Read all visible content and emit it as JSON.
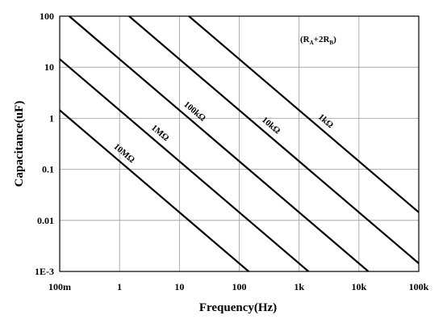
{
  "chart_data": {
    "type": "line",
    "title": "",
    "xlabel": "Frequency(Hz)",
    "ylabel": "Capacitance(uF)",
    "x_scale": "log",
    "y_scale": "log",
    "xlim": [
      0.1,
      100000
    ],
    "ylim": [
      0.001,
      100
    ],
    "x_ticks": [
      0.1,
      1,
      10,
      100,
      1000,
      10000,
      100000
    ],
    "x_tick_labels": [
      "100m",
      "1",
      "10",
      "100",
      "1k",
      "10k",
      "100k"
    ],
    "y_ticks": [
      0.001,
      0.01,
      0.1,
      1,
      10,
      100
    ],
    "y_tick_labels": [
      "1E-3",
      "0.01",
      "0.1",
      "1",
      "10",
      "100"
    ],
    "grid": true,
    "annotation": {
      "parts": [
        {
          "text": "(R",
          "sub": false
        },
        {
          "text": "A",
          "sub": true
        },
        {
          "text": "+2R",
          "sub": false
        },
        {
          "text": "B",
          "sub": true
        },
        {
          "text": ")",
          "sub": false
        }
      ]
    },
    "series": [
      {
        "name": "1kΩ",
        "x": [
          14.4,
          100000
        ],
        "y": [
          100,
          0.0144
        ]
      },
      {
        "name": "10kΩ",
        "x": [
          1.44,
          100000
        ],
        "y": [
          100,
          0.00144
        ]
      },
      {
        "name": "100kΩ",
        "x": [
          0.144,
          14400
        ],
        "y": [
          100,
          0.001
        ]
      },
      {
        "name": "1MΩ",
        "x": [
          0.1,
          1440
        ],
        "y": [
          14.4,
          0.001
        ]
      },
      {
        "name": "10MΩ",
        "x": [
          0.1,
          144
        ],
        "y": [
          1.44,
          0.001
        ]
      }
    ]
  }
}
